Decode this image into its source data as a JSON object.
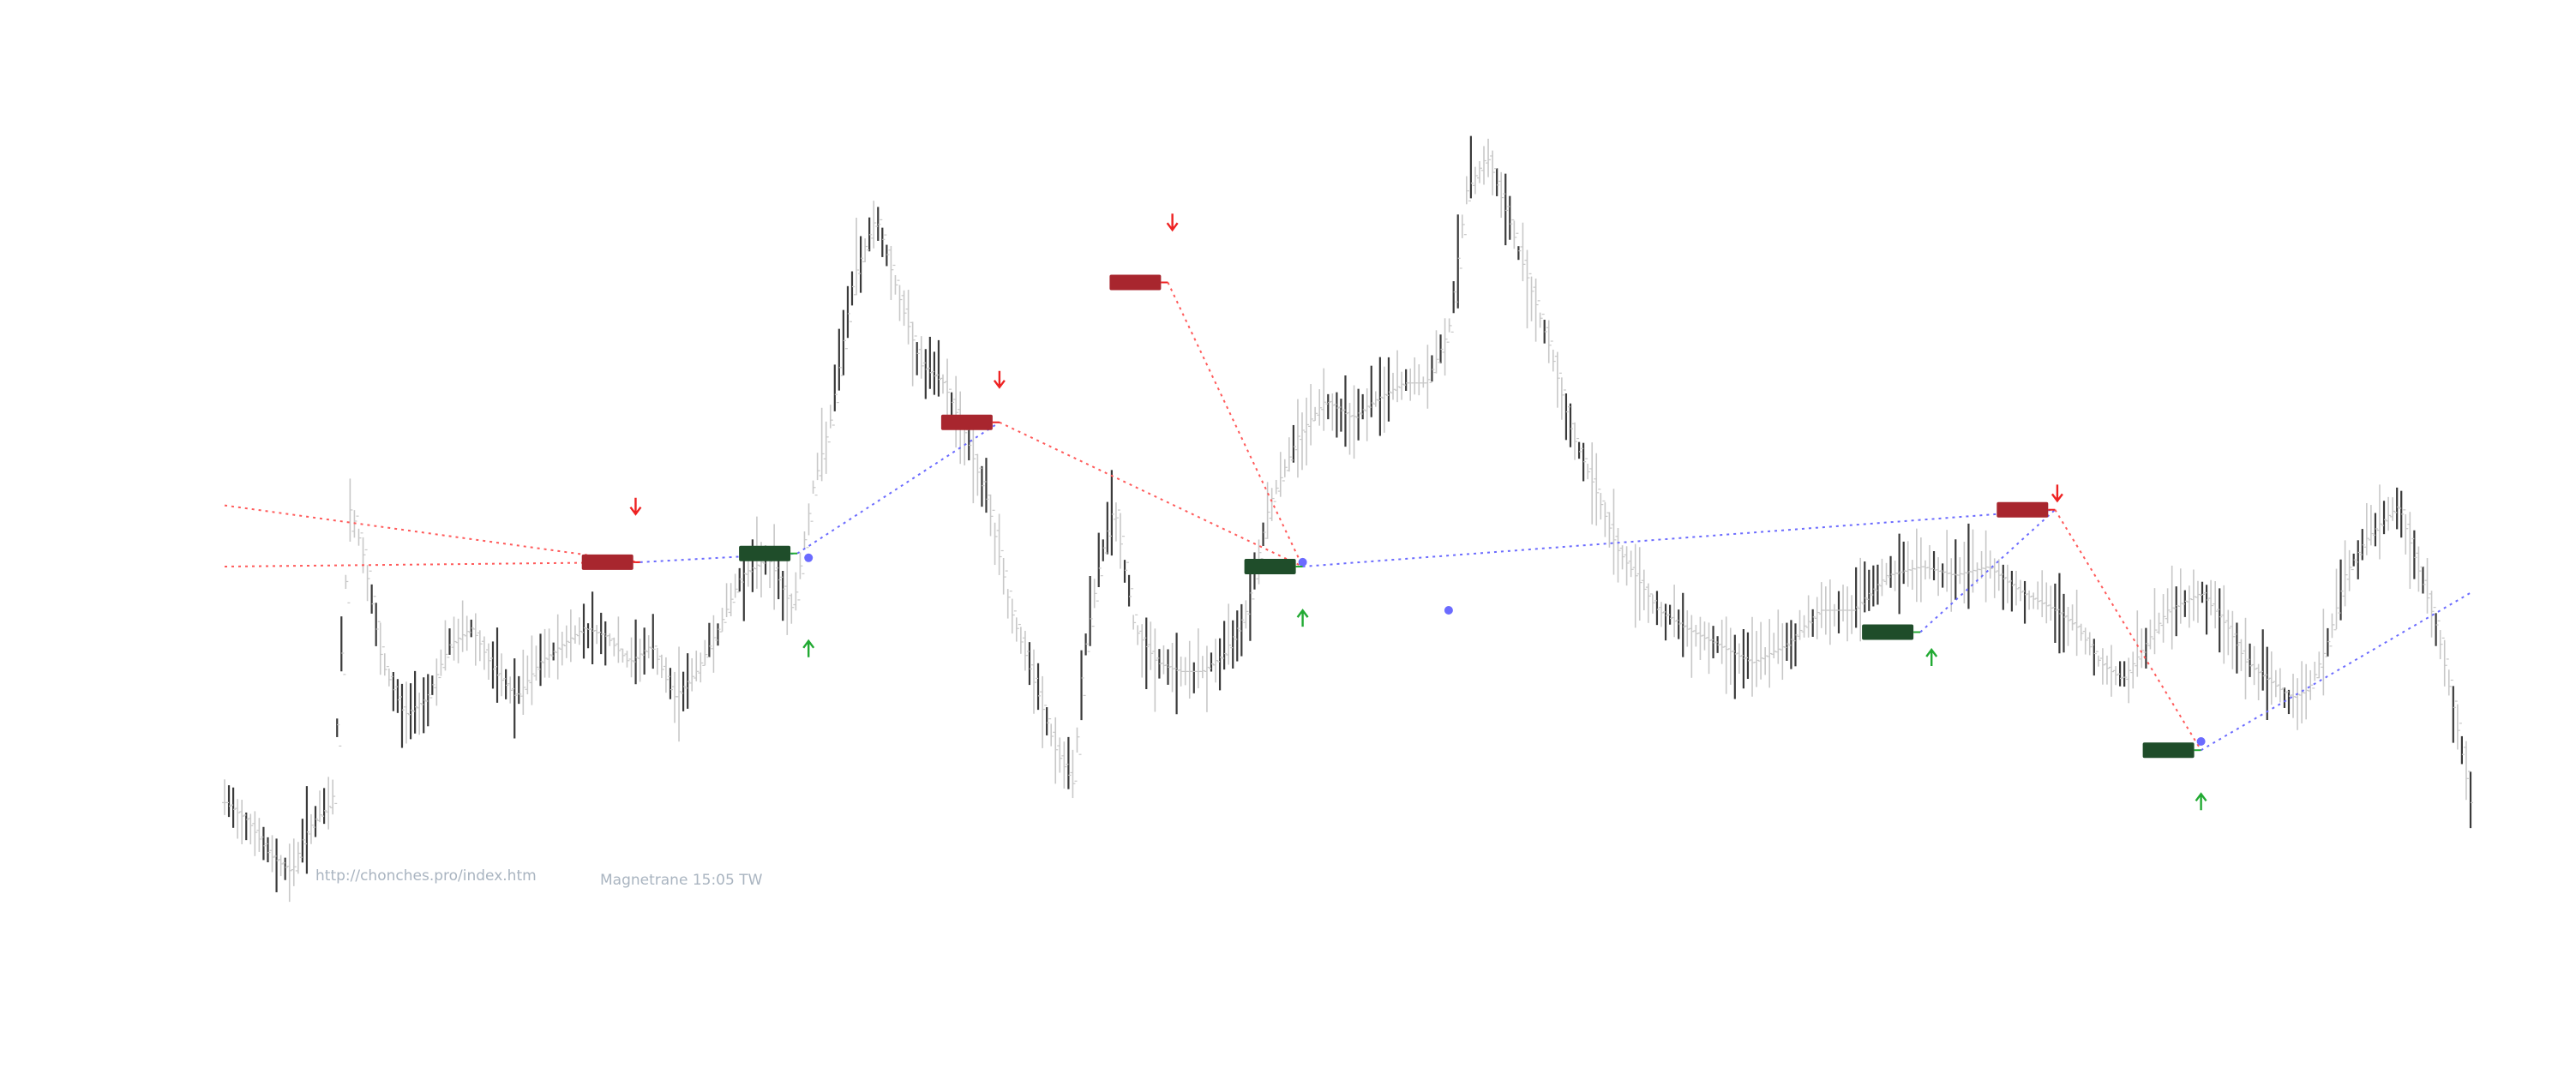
{
  "chart_data": {
    "type": "line",
    "title": "",
    "xlabel": "",
    "ylabel": "",
    "grid": false,
    "legend": "none",
    "footer": {
      "url": "http://chonches.pro/index.htm",
      "caption": "Magnetrane 15:05 TW"
    },
    "colors": {
      "candle": "#3a3a3a",
      "candle_light": "#c8c8c8",
      "zigzag_up": "#6b6bff",
      "zigzag_down": "#ff5a5a",
      "up_arrow": "#22aa33",
      "down_arrow": "#ee2222",
      "buy_label": "#1f4d2a",
      "sell_label": "#a8262e"
    },
    "xlim": [
      0,
      100
    ],
    "ylim": [
      0,
      100
    ],
    "price_path": [
      [
        0,
        18
      ],
      [
        1,
        16
      ],
      [
        2,
        12
      ],
      [
        3,
        10
      ],
      [
        3.5,
        14
      ],
      [
        4,
        16
      ],
      [
        4.8,
        18
      ],
      [
        5.6,
        52
      ],
      [
        6.2,
        46
      ],
      [
        7,
        34
      ],
      [
        8,
        28
      ],
      [
        9,
        30
      ],
      [
        10,
        36
      ],
      [
        11,
        38
      ],
      [
        12,
        33
      ],
      [
        13,
        30
      ],
      [
        14,
        34
      ],
      [
        15,
        36
      ],
      [
        16,
        38
      ],
      [
        17,
        37
      ],
      [
        18,
        34
      ],
      [
        19,
        36
      ],
      [
        20,
        30
      ],
      [
        21,
        33
      ],
      [
        22,
        38
      ],
      [
        23,
        44
      ],
      [
        24.2,
        46
      ],
      [
        25.3,
        40
      ],
      [
        26.2,
        54
      ],
      [
        27,
        62
      ],
      [
        28,
        78
      ],
      [
        29,
        85
      ],
      [
        30,
        76
      ],
      [
        31,
        68
      ],
      [
        32,
        66
      ],
      [
        33,
        60
      ],
      [
        34,
        52
      ],
      [
        35,
        40
      ],
      [
        36,
        32
      ],
      [
        37,
        24
      ],
      [
        37.8,
        20
      ],
      [
        38.2,
        34
      ],
      [
        39,
        46
      ],
      [
        39.6,
        52
      ],
      [
        40.5,
        38
      ],
      [
        41.5,
        34
      ],
      [
        42.5,
        33
      ],
      [
        43.5,
        33
      ],
      [
        44.5,
        35
      ],
      [
        45.5,
        40
      ],
      [
        46.5,
        52
      ],
      [
        47.8,
        60
      ],
      [
        49,
        64
      ],
      [
        50.2,
        62
      ],
      [
        51.2,
        64
      ],
      [
        52.5,
        66
      ],
      [
        53.5,
        66
      ],
      [
        54.5,
        72
      ],
      [
        55.3,
        88
      ],
      [
        56.2,
        92
      ],
      [
        57,
        86
      ],
      [
        58,
        78
      ],
      [
        59,
        70
      ],
      [
        60,
        60
      ],
      [
        61,
        54
      ],
      [
        62,
        47
      ],
      [
        62.8,
        44
      ],
      [
        63.8,
        40
      ],
      [
        65,
        38
      ],
      [
        66.5,
        36
      ],
      [
        68,
        34
      ],
      [
        69.5,
        36
      ],
      [
        71,
        40
      ],
      [
        72.5,
        40
      ],
      [
        74,
        44
      ],
      [
        75.5,
        45
      ],
      [
        77,
        44
      ],
      [
        78.5,
        45
      ],
      [
        80,
        42
      ],
      [
        81.5,
        40
      ],
      [
        82.5,
        38
      ],
      [
        83.5,
        34
      ],
      [
        84.5,
        32
      ],
      [
        85.5,
        36
      ],
      [
        86.5,
        40
      ],
      [
        88,
        42
      ],
      [
        89.2,
        38
      ],
      [
        90,
        34
      ],
      [
        91,
        32
      ],
      [
        92,
        30
      ],
      [
        92.8,
        31
      ],
      [
        93.6,
        36
      ],
      [
        94.4,
        44
      ],
      [
        95.3,
        48
      ],
      [
        96,
        50
      ],
      [
        96.8,
        52
      ],
      [
        97.5,
        46
      ],
      [
        98.5,
        38
      ],
      [
        99.3,
        28
      ],
      [
        100,
        18
      ]
    ],
    "zigzag": [
      {
        "from": [
          0,
          52
        ],
        "to": [
          18.5,
          45.5
        ],
        "dir": "down"
      },
      {
        "from": [
          0,
          45
        ],
        "to": [
          18.5,
          45.5
        ],
        "dir": "down"
      },
      {
        "from": [
          18.5,
          45.5
        ],
        "to": [
          25.5,
          46.5
        ],
        "dir": "up"
      },
      {
        "from": [
          25.5,
          46.5
        ],
        "to": [
          34.5,
          61.5
        ],
        "dir": "up"
      },
      {
        "from": [
          34.5,
          61.5
        ],
        "to": [
          48,
          45
        ],
        "dir": "down"
      },
      {
        "from": [
          42,
          77.5
        ],
        "to": [
          48,
          45
        ],
        "dir": "down"
      },
      {
        "from": [
          48,
          45
        ],
        "to": [
          81.5,
          51.5
        ],
        "dir": "up"
      },
      {
        "from": [
          75.5,
          37.5
        ],
        "to": [
          81.5,
          51.5
        ],
        "dir": "up"
      },
      {
        "from": [
          81.5,
          51.5
        ],
        "to": [
          88,
          24
        ],
        "dir": "down"
      },
      {
        "from": [
          88,
          24
        ],
        "to": [
          100,
          42
        ],
        "dir": "up"
      }
    ],
    "signals": [
      {
        "type": "sell",
        "x": 18.5,
        "y": 45.5,
        "label": ""
      },
      {
        "type": "sell",
        "x": 34.5,
        "y": 61.5,
        "label": ""
      },
      {
        "type": "sell",
        "x": 42,
        "y": 77.5,
        "label": ""
      },
      {
        "type": "sell",
        "x": 81.5,
        "y": 51.5,
        "label": ""
      },
      {
        "type": "buy",
        "x": 25.5,
        "y": 46.5,
        "label": ""
      },
      {
        "type": "buy",
        "x": 48,
        "y": 45,
        "label": ""
      },
      {
        "type": "buy",
        "x": 75.5,
        "y": 37.5,
        "label": ""
      },
      {
        "type": "buy",
        "x": 88,
        "y": 24,
        "label": ""
      }
    ],
    "arrows": [
      {
        "dir": "down",
        "x": 18.3,
        "y": 51.5
      },
      {
        "dir": "down",
        "x": 34.5,
        "y": 66
      },
      {
        "dir": "down",
        "x": 42.2,
        "y": 84
      },
      {
        "dir": "down",
        "x": 81.6,
        "y": 53
      },
      {
        "dir": "up",
        "x": 26,
        "y": 36
      },
      {
        "dir": "up",
        "x": 48,
        "y": 39.5
      },
      {
        "dir": "up",
        "x": 76,
        "y": 35
      },
      {
        "dir": "up",
        "x": 88,
        "y": 18.5
      }
    ],
    "markers": [
      {
        "x": 26,
        "y": 46,
        "color": "blue"
      },
      {
        "x": 48,
        "y": 45.5,
        "color": "blue"
      },
      {
        "x": 54.5,
        "y": 40,
        "color": "blue"
      },
      {
        "x": 88,
        "y": 25,
        "color": "blue"
      }
    ]
  }
}
